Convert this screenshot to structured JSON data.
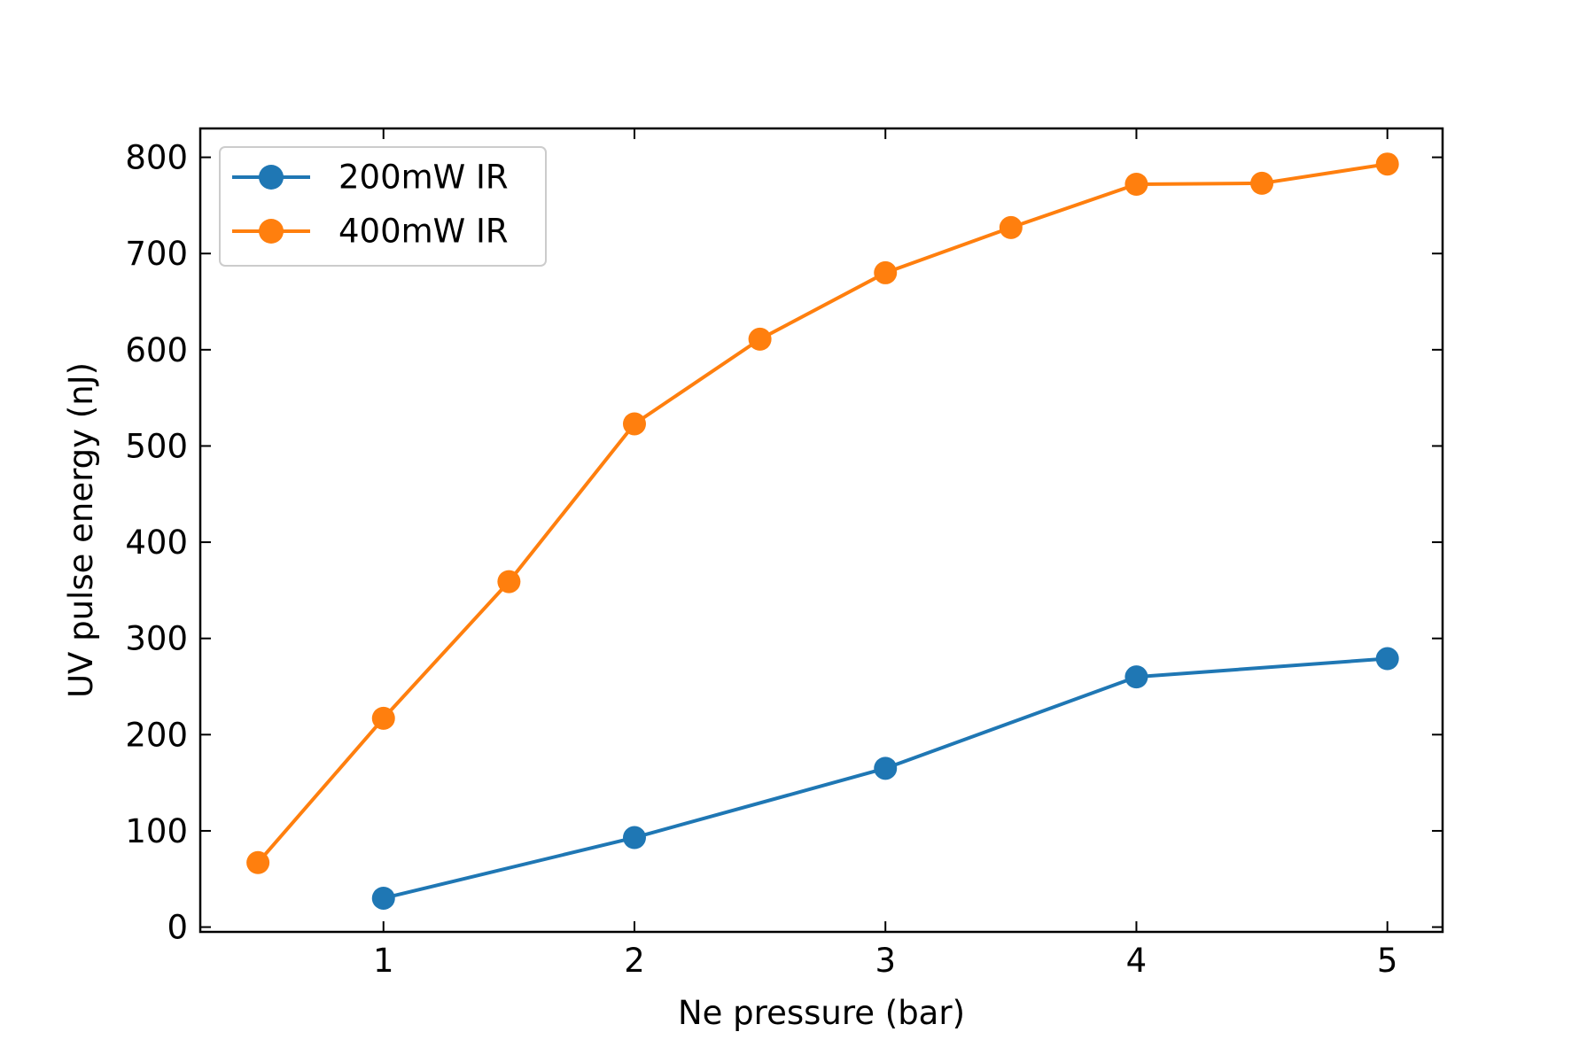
{
  "chart_data": {
    "type": "line",
    "xlabel": "Ne pressure (bar)",
    "ylabel": "UV pulse energy (nJ)",
    "xlim": [
      0.27,
      5.22
    ],
    "ylim": [
      -5,
      830
    ],
    "xticks": [
      1,
      2,
      3,
      4,
      5
    ],
    "yticks": [
      0,
      100,
      200,
      300,
      400,
      500,
      600,
      700,
      800
    ],
    "grid": false,
    "legend_position": "upper-left",
    "series": [
      {
        "name": "200mW IR",
        "color": "#1f77b4",
        "marker": "circle",
        "x": [
          1,
          2,
          3,
          4,
          5
        ],
        "y": [
          30,
          93,
          165,
          260,
          279
        ]
      },
      {
        "name": "400mW IR",
        "color": "#ff7f0e",
        "marker": "circle",
        "x": [
          0.5,
          1,
          1.5,
          2,
          2.5,
          3,
          3.5,
          4,
          4.5,
          5
        ],
        "y": [
          67,
          217,
          359,
          523,
          611,
          680,
          727,
          772,
          773,
          793
        ]
      }
    ]
  }
}
